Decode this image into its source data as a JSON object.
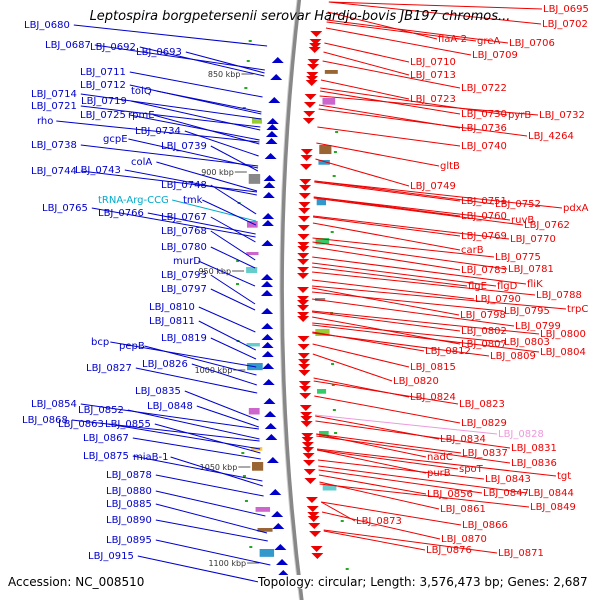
{
  "title": "Leptospira borgpetersenii serovar Hardjo-bovis JB197 chromos...",
  "footer": {
    "accession": "Accession: NC_008510",
    "summary": "Topology: circular; Length: 3,576,473 bp; Genes: 2,687"
  },
  "colors": {
    "forward_gene": "#0000cc",
    "reverse_gene": "#ee0000",
    "trna": "#00aacc",
    "rrna": "#ee99dd",
    "backbone": "#888888"
  },
  "ruler": [
    {
      "label": "850 kbp"
    },
    {
      "label": "900 kbp"
    },
    {
      "label": "950 kbp"
    },
    {
      "label": "1000 kbp"
    },
    {
      "label": "1050 kbp"
    },
    {
      "label": "1100 kbp"
    }
  ],
  "left_labels": [
    {
      "text": "LBJ_0680",
      "kind": "gene"
    },
    {
      "text": "LBJ_0687",
      "kind": "gene"
    },
    {
      "text": "LBJ_0692",
      "kind": "gene"
    },
    {
      "text": "LBJ_0693",
      "kind": "gene"
    },
    {
      "text": "LBJ_0711",
      "kind": "gene"
    },
    {
      "text": "LBJ_0712",
      "kind": "gene"
    },
    {
      "text": "tolQ",
      "kind": "gene"
    },
    {
      "text": "LBJ_0714",
      "kind": "gene"
    },
    {
      "text": "LBJ_0719",
      "kind": "gene"
    },
    {
      "text": "LBJ_0721",
      "kind": "gene"
    },
    {
      "text": "LBJ_0725",
      "kind": "gene"
    },
    {
      "text": "rpmE",
      "kind": "gene"
    },
    {
      "text": "rho",
      "kind": "gene"
    },
    {
      "text": "LBJ_0734",
      "kind": "gene"
    },
    {
      "text": "gcpE",
      "kind": "gene"
    },
    {
      "text": "LBJ_0738",
      "kind": "gene"
    },
    {
      "text": "LBJ_0739",
      "kind": "gene"
    },
    {
      "text": "colA",
      "kind": "gene"
    },
    {
      "text": "LBJ_0744",
      "kind": "gene"
    },
    {
      "text": "LBJ_0743",
      "kind": "gene"
    },
    {
      "text": "LBJ_0748",
      "kind": "gene"
    },
    {
      "text": "tRNA-Arg-CCG",
      "kind": "trna"
    },
    {
      "text": "tmk",
      "kind": "gene"
    },
    {
      "text": "LBJ_0765",
      "kind": "gene"
    },
    {
      "text": "LBJ_0766",
      "kind": "gene"
    },
    {
      "text": "LBJ_0767",
      "kind": "gene"
    },
    {
      "text": "LBJ_0768",
      "kind": "gene"
    },
    {
      "text": "LBJ_0780",
      "kind": "gene"
    },
    {
      "text": "murD",
      "kind": "gene"
    },
    {
      "text": "LBJ_0793",
      "kind": "gene"
    },
    {
      "text": "LBJ_0797",
      "kind": "gene"
    },
    {
      "text": "LBJ_0810",
      "kind": "gene"
    },
    {
      "text": "LBJ_0811",
      "kind": "gene"
    },
    {
      "text": "LBJ_0819",
      "kind": "gene"
    },
    {
      "text": "bcp",
      "kind": "gene"
    },
    {
      "text": "pepB",
      "kind": "gene"
    },
    {
      "text": "LBJ_0826",
      "kind": "gene"
    },
    {
      "text": "LBJ_0827",
      "kind": "gene"
    },
    {
      "text": "LBJ_0835",
      "kind": "gene"
    },
    {
      "text": "LBJ_0848",
      "kind": "gene"
    },
    {
      "text": "LBJ_0854",
      "kind": "gene"
    },
    {
      "text": "LBJ_0852",
      "kind": "gene"
    },
    {
      "text": "LBJ_0868",
      "kind": "gene"
    },
    {
      "text": "LBJ_0863",
      "kind": "gene"
    },
    {
      "text": "LBJ_0855",
      "kind": "gene"
    },
    {
      "text": "LBJ_0867",
      "kind": "gene"
    },
    {
      "text": "LBJ_0875",
      "kind": "gene"
    },
    {
      "text": "miaB-1",
      "kind": "gene"
    },
    {
      "text": "LBJ_0878",
      "kind": "gene"
    },
    {
      "text": "LBJ_0880",
      "kind": "gene"
    },
    {
      "text": "LBJ_0885",
      "kind": "gene"
    },
    {
      "text": "LBJ_0890",
      "kind": "gene"
    },
    {
      "text": "LBJ_0895",
      "kind": "gene"
    },
    {
      "text": "LBJ_0915",
      "kind": "gene"
    }
  ],
  "right_labels": [
    {
      "text": "LBJ_0695",
      "kind": "gene"
    },
    {
      "text": "LBJ_0702",
      "kind": "gene"
    },
    {
      "text": "flaA-2",
      "kind": "gene"
    },
    {
      "text": "greA",
      "kind": "gene"
    },
    {
      "text": "LBJ_0706",
      "kind": "gene"
    },
    {
      "text": "LBJ_0709",
      "kind": "gene"
    },
    {
      "text": "LBJ_0710",
      "kind": "gene"
    },
    {
      "text": "LBJ_0713",
      "kind": "gene"
    },
    {
      "text": "LBJ_0722",
      "kind": "gene"
    },
    {
      "text": "LBJ_0723",
      "kind": "gene"
    },
    {
      "text": "LBJ_0730",
      "kind": "gene"
    },
    {
      "text": "pyrB",
      "kind": "gene"
    },
    {
      "text": "LBJ_0732",
      "kind": "gene"
    },
    {
      "text": "LBJ_0736",
      "kind": "gene"
    },
    {
      "text": "LBJ_4264",
      "kind": "gene"
    },
    {
      "text": "LBJ_0740",
      "kind": "gene"
    },
    {
      "text": "gltB",
      "kind": "gene"
    },
    {
      "text": "LBJ_0749",
      "kind": "gene"
    },
    {
      "text": "LBJ_0751",
      "kind": "gene"
    },
    {
      "text": "LBJ_0752",
      "kind": "gene"
    },
    {
      "text": "pdxA",
      "kind": "gene"
    },
    {
      "text": "LBJ_0760",
      "kind": "gene"
    },
    {
      "text": "ruvB",
      "kind": "gene"
    },
    {
      "text": "LBJ_0762",
      "kind": "gene"
    },
    {
      "text": "LBJ_0769",
      "kind": "gene"
    },
    {
      "text": "LBJ_0770",
      "kind": "gene"
    },
    {
      "text": "carB",
      "kind": "gene"
    },
    {
      "text": "LBJ_0775",
      "kind": "gene"
    },
    {
      "text": "LBJ_0783",
      "kind": "gene"
    },
    {
      "text": "LBJ_0781",
      "kind": "gene"
    },
    {
      "text": "flgE",
      "kind": "gene"
    },
    {
      "text": "flgD",
      "kind": "gene"
    },
    {
      "text": "fliK",
      "kind": "gene"
    },
    {
      "text": "LBJ_0790",
      "kind": "gene"
    },
    {
      "text": "LBJ_0788",
      "kind": "gene"
    },
    {
      "text": "LBJ_0798",
      "kind": "gene"
    },
    {
      "text": "LBJ_0795",
      "kind": "gene"
    },
    {
      "text": "trpC",
      "kind": "gene"
    },
    {
      "text": "LBJ_0799",
      "kind": "gene"
    },
    {
      "text": "LBJ_0802",
      "kind": "gene"
    },
    {
      "text": "LBJ_0800",
      "kind": "gene"
    },
    {
      "text": "LBJ_0807",
      "kind": "gene"
    },
    {
      "text": "LBJ_0803",
      "kind": "gene"
    },
    {
      "text": "LBJ_0809",
      "kind": "gene"
    },
    {
      "text": "LBJ_0804",
      "kind": "gene"
    },
    {
      "text": "LBJ_0812",
      "kind": "gene"
    },
    {
      "text": "LBJ_0815",
      "kind": "gene"
    },
    {
      "text": "LBJ_0820",
      "kind": "gene"
    },
    {
      "text": "LBJ_0824",
      "kind": "gene"
    },
    {
      "text": "LBJ_0823",
      "kind": "gene"
    },
    {
      "text": "LBJ_0829",
      "kind": "gene"
    },
    {
      "text": "LBJ_0828",
      "kind": "rrna"
    },
    {
      "text": "LBJ_0834",
      "kind": "gene"
    },
    {
      "text": "LBJ_0831",
      "kind": "gene"
    },
    {
      "text": "LBJ_0837",
      "kind": "gene"
    },
    {
      "text": "nadC",
      "kind": "gene"
    },
    {
      "text": "LBJ_0836",
      "kind": "gene"
    },
    {
      "text": "spoT",
      "kind": "gene"
    },
    {
      "text": "purB",
      "kind": "gene"
    },
    {
      "text": "tgt",
      "kind": "gene"
    },
    {
      "text": "LBJ_0843",
      "kind": "gene"
    },
    {
      "text": "LBJ_0847",
      "kind": "gene"
    },
    {
      "text": "LBJ_0844",
      "kind": "gene"
    },
    {
      "text": "LBJ_0856",
      "kind": "gene"
    },
    {
      "text": "LBJ_0849",
      "kind": "gene"
    },
    {
      "text": "LBJ_0861",
      "kind": "gene"
    },
    {
      "text": "LBJ_0873",
      "kind": "gene"
    },
    {
      "text": "LBJ_0866",
      "kind": "gene"
    },
    {
      "text": "LBJ_0870",
      "kind": "gene"
    },
    {
      "text": "LBJ_0876",
      "kind": "gene"
    },
    {
      "text": "LBJ_0871",
      "kind": "gene"
    }
  ]
}
